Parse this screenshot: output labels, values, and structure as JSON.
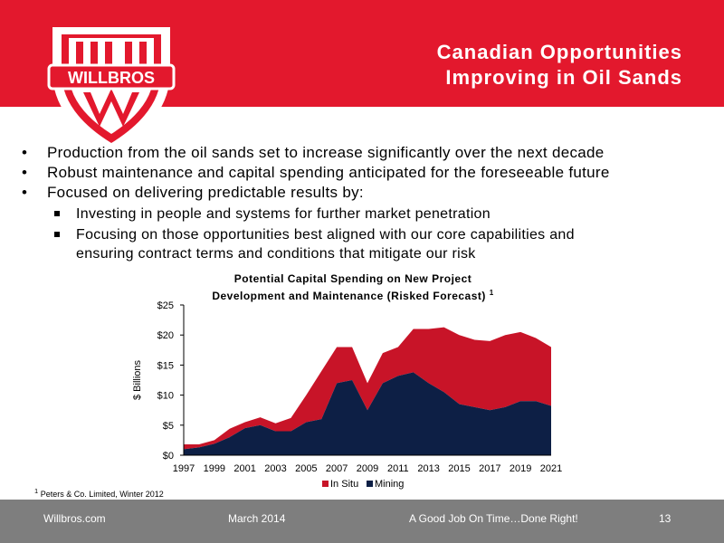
{
  "header": {
    "title_line1": "Canadian Opportunities",
    "title_line2": "Improving in Oil Sands",
    "logo_text": "WILLBROS",
    "brand_color": "#e3182d"
  },
  "bullets": [
    "Production from the oil sands set to increase significantly over the next decade",
    "Robust maintenance and capital spending anticipated for the foreseeable future",
    "Focused on delivering predictable results by:"
  ],
  "sub_bullets": [
    "Investing in people and systems for further market penetration",
    "Focusing on those opportunities best aligned with our core capabilities and",
    "ensuring contract terms and conditions that mitigate our risk"
  ],
  "chart_data": {
    "type": "area",
    "title_line1": "Potential Capital Spending on New Project",
    "title_line2": "Development and Maintenance (Risked Forecast)",
    "title_superscript": "1",
    "ylabel": "$ Billions",
    "xlabel": "",
    "ylim": [
      0,
      25
    ],
    "y_ticks": [
      "$0",
      "$5",
      "$10",
      "$15",
      "$20",
      "$25"
    ],
    "x_tick_labels": [
      "1997",
      "1999",
      "2001",
      "2003",
      "2005",
      "2007",
      "2009",
      "2011",
      "2013",
      "2015",
      "2017",
      "2019",
      "2021"
    ],
    "x": [
      1997,
      1998,
      1999,
      2000,
      2001,
      2002,
      2003,
      2004,
      2005,
      2006,
      2007,
      2008,
      2009,
      2010,
      2011,
      2012,
      2013,
      2014,
      2015,
      2016,
      2017,
      2018,
      2019,
      2020,
      2021
    ],
    "stacked": true,
    "series": [
      {
        "name": "Mining",
        "color": "#0d1f45",
        "values": [
          1.0,
          1.3,
          1.9,
          3.0,
          4.5,
          5.0,
          4.0,
          4.0,
          5.5,
          6.0,
          12.0,
          12.5,
          7.5,
          12.0,
          13.2,
          13.8,
          12.0,
          10.5,
          8.5,
          8.0,
          7.5,
          8.0,
          9.0,
          9.0,
          8.2
        ]
      },
      {
        "name": "In Situ",
        "color": "#c81428",
        "values": [
          0.8,
          0.5,
          0.6,
          1.4,
          1.0,
          1.3,
          1.3,
          2.2,
          4.5,
          8.0,
          6.0,
          5.5,
          4.5,
          5.0,
          4.8,
          7.2,
          9.0,
          10.8,
          11.5,
          11.2,
          11.5,
          12.0,
          11.5,
          10.5,
          9.8
        ]
      }
    ],
    "legend_position": "bottom",
    "grid": false
  },
  "footnote": "Peters & Co. Limited, Winter 2012",
  "footnote_marker": "1",
  "footer": {
    "website": "Willbros.com",
    "date": "March 2014",
    "slogan": "A Good Job On Time…Done Right!",
    "page": "13"
  }
}
